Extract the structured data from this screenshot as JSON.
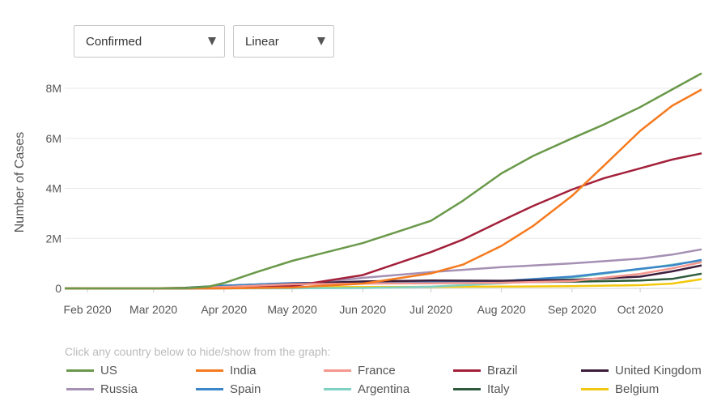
{
  "controls": {
    "metric_selected": "Confirmed",
    "scale_selected": "Linear"
  },
  "legend_hint": "Click any country below to hide/show from the graph:",
  "chart_data": {
    "type": "line",
    "ylabel": "Number of Cases",
    "xlabel": "",
    "x_ticks": [
      "Feb 2020",
      "Mar 2020",
      "Apr 2020",
      "May 2020",
      "Jun 2020",
      "Jul 2020",
      "Aug 2020",
      "Sep 2020",
      "Oct 2020"
    ],
    "x_start": "2020-01-22",
    "x_end": "2020-10-28",
    "y_ticks": [
      "0",
      "2M",
      "4M",
      "6M",
      "8M"
    ],
    "ylim": [
      0,
      8500000
    ],
    "grid": "horizontal",
    "legend_position": "bottom",
    "series": [
      {
        "name": "US",
        "color": "#6a994a",
        "points": [
          [
            "2020-01-22",
            0
          ],
          [
            "2020-03-15",
            3000
          ],
          [
            "2020-03-25",
            65000
          ],
          [
            "2020-04-01",
            215000
          ],
          [
            "2020-04-15",
            640000
          ],
          [
            "2020-05-01",
            1100000
          ],
          [
            "2020-06-01",
            1810000
          ],
          [
            "2020-07-01",
            2700000
          ],
          [
            "2020-07-15",
            3500000
          ],
          [
            "2020-08-01",
            4600000
          ],
          [
            "2020-08-15",
            5300000
          ],
          [
            "2020-09-01",
            6000000
          ],
          [
            "2020-09-15",
            6550000
          ],
          [
            "2020-10-01",
            7250000
          ],
          [
            "2020-10-15",
            7950000
          ],
          [
            "2020-10-28",
            8600000
          ]
        ]
      },
      {
        "name": "India",
        "color": "#f57a1e",
        "points": [
          [
            "2020-01-22",
            0
          ],
          [
            "2020-04-01",
            1600
          ],
          [
            "2020-05-01",
            37000
          ],
          [
            "2020-06-01",
            190000
          ],
          [
            "2020-07-01",
            600000
          ],
          [
            "2020-07-15",
            950000
          ],
          [
            "2020-08-01",
            1700000
          ],
          [
            "2020-08-15",
            2500000
          ],
          [
            "2020-09-01",
            3700000
          ],
          [
            "2020-09-15",
            4900000
          ],
          [
            "2020-10-01",
            6300000
          ],
          [
            "2020-10-15",
            7300000
          ],
          [
            "2020-10-28",
            7950000
          ]
        ]
      },
      {
        "name": "France",
        "color": "#f4978e",
        "points": [
          [
            "2020-01-22",
            0
          ],
          [
            "2020-03-15",
            5400
          ],
          [
            "2020-04-01",
            57000
          ],
          [
            "2020-05-01",
            168000
          ],
          [
            "2020-06-01",
            190000
          ],
          [
            "2020-07-01",
            205000
          ],
          [
            "2020-08-01",
            225000
          ],
          [
            "2020-09-01",
            290000
          ],
          [
            "2020-10-01",
            580000
          ],
          [
            "2020-10-15",
            800000
          ],
          [
            "2020-10-28",
            1050000
          ]
        ]
      },
      {
        "name": "Brazil",
        "color": "#a3203a",
        "points": [
          [
            "2020-01-22",
            0
          ],
          [
            "2020-04-01",
            6800
          ],
          [
            "2020-05-01",
            92000
          ],
          [
            "2020-06-01",
            530000
          ],
          [
            "2020-07-01",
            1450000
          ],
          [
            "2020-07-15",
            1950000
          ],
          [
            "2020-08-01",
            2700000
          ],
          [
            "2020-08-15",
            3300000
          ],
          [
            "2020-09-01",
            3950000
          ],
          [
            "2020-09-15",
            4400000
          ],
          [
            "2020-10-01",
            4800000
          ],
          [
            "2020-10-15",
            5150000
          ],
          [
            "2020-10-28",
            5400000
          ]
        ]
      },
      {
        "name": "United Kingdom",
        "color": "#3d1d3c",
        "points": [
          [
            "2020-01-22",
            0
          ],
          [
            "2020-03-15",
            1400
          ],
          [
            "2020-04-01",
            30000
          ],
          [
            "2020-05-01",
            180000
          ],
          [
            "2020-06-01",
            280000
          ],
          [
            "2020-07-01",
            315000
          ],
          [
            "2020-08-01",
            305000
          ],
          [
            "2020-09-01",
            340000
          ],
          [
            "2020-10-01",
            470000
          ],
          [
            "2020-10-15",
            680000
          ],
          [
            "2020-10-28",
            920000
          ]
        ]
      },
      {
        "name": "Russia",
        "color": "#a590b4",
        "points": [
          [
            "2020-01-22",
            0
          ],
          [
            "2020-04-01",
            2800
          ],
          [
            "2020-05-01",
            115000
          ],
          [
            "2020-06-01",
            420000
          ],
          [
            "2020-07-01",
            650000
          ],
          [
            "2020-08-01",
            850000
          ],
          [
            "2020-09-01",
            1000000
          ],
          [
            "2020-10-01",
            1190000
          ],
          [
            "2020-10-15",
            1350000
          ],
          [
            "2020-10-28",
            1560000
          ]
        ]
      },
      {
        "name": "Spain",
        "color": "#3a86c8",
        "points": [
          [
            "2020-01-22",
            0
          ],
          [
            "2020-03-15",
            7800
          ],
          [
            "2020-04-01",
            104000
          ],
          [
            "2020-05-01",
            213000
          ],
          [
            "2020-06-01",
            240000
          ],
          [
            "2020-07-01",
            250000
          ],
          [
            "2020-08-01",
            290000
          ],
          [
            "2020-09-01",
            470000
          ],
          [
            "2020-10-01",
            780000
          ],
          [
            "2020-10-15",
            920000
          ],
          [
            "2020-10-28",
            1140000
          ]
        ]
      },
      {
        "name": "Argentina",
        "color": "#7fd1c2",
        "points": [
          [
            "2020-01-22",
            0
          ],
          [
            "2020-04-01",
            1000
          ],
          [
            "2020-05-01",
            4500
          ],
          [
            "2020-06-01",
            17000
          ],
          [
            "2020-07-01",
            67000
          ],
          [
            "2020-08-01",
            200000
          ],
          [
            "2020-09-01",
            430000
          ],
          [
            "2020-10-01",
            770000
          ],
          [
            "2020-10-15",
            950000
          ],
          [
            "2020-10-28",
            1120000
          ]
        ]
      },
      {
        "name": "Italy",
        "color": "#2c5a3a",
        "points": [
          [
            "2020-01-22",
            0
          ],
          [
            "2020-03-01",
            1700
          ],
          [
            "2020-03-15",
            24700
          ],
          [
            "2020-04-01",
            110000
          ],
          [
            "2020-05-01",
            207000
          ],
          [
            "2020-06-01",
            233000
          ],
          [
            "2020-07-01",
            241000
          ],
          [
            "2020-08-01",
            248000
          ],
          [
            "2020-09-01",
            270000
          ],
          [
            "2020-10-01",
            315000
          ],
          [
            "2020-10-15",
            380000
          ],
          [
            "2020-10-28",
            590000
          ]
        ]
      },
      {
        "name": "Belgium",
        "color": "#f2c80f",
        "points": [
          [
            "2020-01-22",
            0
          ],
          [
            "2020-04-01",
            13000
          ],
          [
            "2020-05-01",
            49000
          ],
          [
            "2020-06-01",
            58000
          ],
          [
            "2020-07-01",
            62000
          ],
          [
            "2020-08-01",
            70000
          ],
          [
            "2020-09-01",
            86000
          ],
          [
            "2020-10-01",
            130000
          ],
          [
            "2020-10-15",
            190000
          ],
          [
            "2020-10-28",
            370000
          ]
        ]
      }
    ]
  }
}
